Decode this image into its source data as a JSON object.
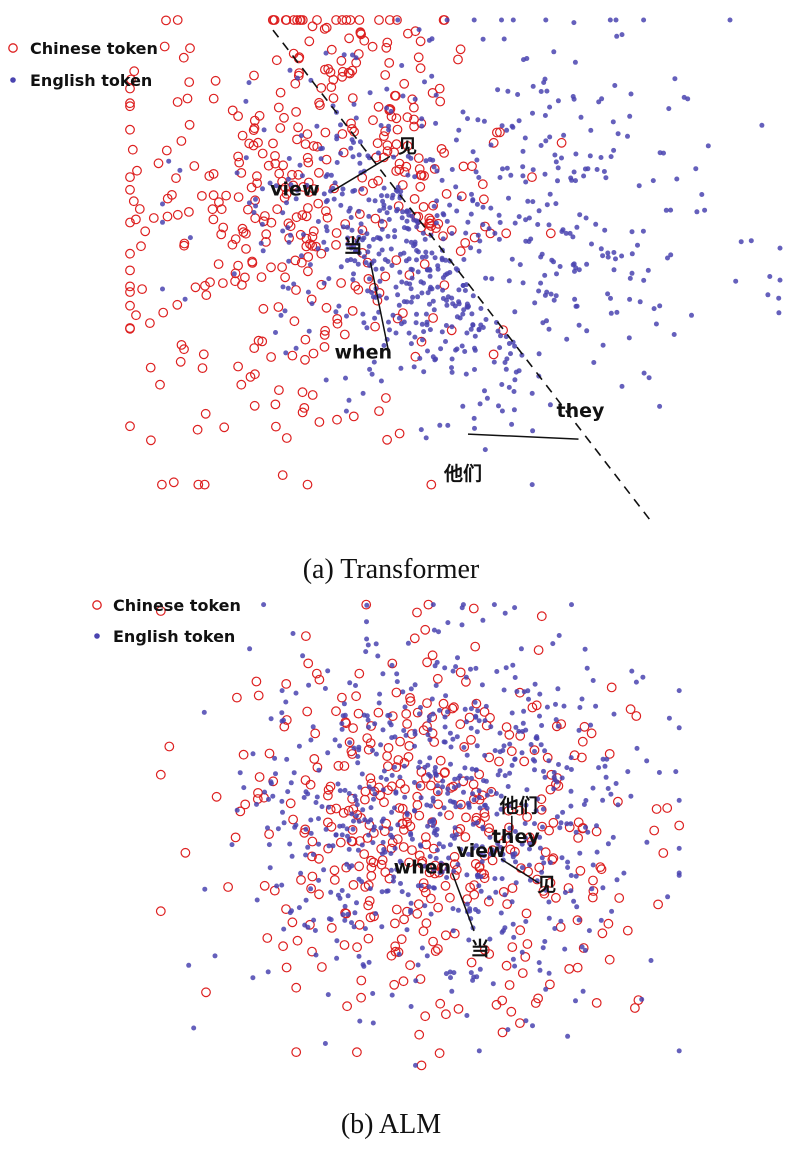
{
  "figure": {
    "captions": [
      "(a) Transformer",
      "(b) ALM"
    ]
  },
  "colors": {
    "chinese": "#dd2020",
    "english": "#4a44b0",
    "annotation": "#111111"
  },
  "chart_data": [
    {
      "type": "scatter",
      "title": "",
      "caption": "(a) Transformer",
      "xlabel": "",
      "ylabel": "",
      "xlim": [
        0,
        100
      ],
      "ylim": [
        0,
        100
      ],
      "grid": false,
      "legend_position": "top-left",
      "series": [
        {
          "name": "Chinese token",
          "marker": "open-circle",
          "color": "#dd2020",
          "approx_count": 420,
          "distribution": "concentrated left of the dashed line"
        },
        {
          "name": "English token",
          "marker": "filled-dot",
          "color": "#4a44b0",
          "approx_count": 700,
          "distribution": "concentrated right of the dashed line"
        }
      ],
      "separator": {
        "style": "dashed",
        "from": [
          22,
          98
        ],
        "to": [
          80,
          1
        ]
      },
      "annotations": [
        {
          "text": "见",
          "series": "Chinese token",
          "point": [
            40,
            73
          ]
        },
        {
          "text": "view",
          "series": "English token",
          "point": [
            31,
            66
          ]
        },
        {
          "text": "当",
          "series": "Chinese token",
          "point": [
            37,
            52
          ]
        },
        {
          "text": "when",
          "series": "English token",
          "point": [
            40,
            33
          ]
        },
        {
          "text": "他们",
          "series": "Chinese token",
          "point": [
            52,
            18
          ]
        },
        {
          "text": "they",
          "series": "English token",
          "point": [
            69,
            17
          ]
        }
      ]
    },
    {
      "type": "scatter",
      "title": "",
      "caption": "(b) ALM",
      "xlabel": "",
      "ylabel": "",
      "xlim": [
        0,
        100
      ],
      "ylim": [
        0,
        100
      ],
      "grid": false,
      "legend_position": "top-left",
      "series": [
        {
          "name": "Chinese token",
          "marker": "open-circle",
          "color": "#dd2020",
          "approx_count": 420,
          "distribution": "fully intermixed cloud"
        },
        {
          "name": "English token",
          "marker": "filled-dot",
          "color": "#4a44b0",
          "approx_count": 700,
          "distribution": "fully intermixed cloud"
        }
      ],
      "separator": null,
      "annotations": [
        {
          "text": "他们",
          "series": "Chinese token",
          "point": [
            67,
            54
          ]
        },
        {
          "text": "they",
          "series": "English token",
          "point": [
            67,
            50
          ]
        },
        {
          "text": "view",
          "series": "English token",
          "point": [
            65,
            45
          ]
        },
        {
          "text": "见",
          "series": "Chinese token",
          "point": [
            72,
            40
          ]
        },
        {
          "text": "when",
          "series": "English token",
          "point": [
            56,
            42
          ]
        },
        {
          "text": "当",
          "series": "Chinese token",
          "point": [
            60,
            30
          ]
        }
      ]
    }
  ]
}
